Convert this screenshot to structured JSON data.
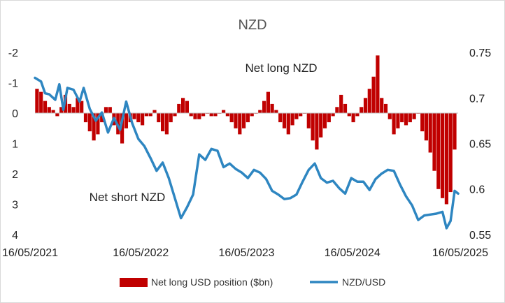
{
  "chart_data": {
    "type": "bar+line",
    "title": "NZD",
    "annotations": [
      "Net long NZD",
      "Net short NZD"
    ],
    "x_tick_labels": [
      "16/05/2021",
      "16/05/2022",
      "16/05/2023",
      "16/05/2024",
      "16/05/2025"
    ],
    "x_range": [
      "2021-05-16",
      "2025-05-16"
    ],
    "left_axis": {
      "ticks": [
        "-2",
        "-1",
        "0",
        "1",
        "2",
        "3",
        "4"
      ],
      "range": [
        -2,
        4
      ],
      "inverted": true
    },
    "right_axis": {
      "ticks": [
        "0.75",
        "0.7",
        "0.65",
        "0.6",
        "0.55"
      ],
      "range": [
        0.55,
        0.75
      ]
    },
    "grid": false,
    "legend_position": "bottom",
    "series": [
      {
        "name": "Net long USD position ($bn)",
        "type": "bar",
        "axis": "left",
        "color": "#c00000",
        "x": [
          "2021-05-23",
          "2021-06-06",
          "2021-06-20",
          "2021-07-04",
          "2021-07-18",
          "2021-08-01",
          "2021-08-15",
          "2021-08-29",
          "2021-09-12",
          "2021-09-26",
          "2021-10-10",
          "2021-10-24",
          "2021-11-07",
          "2021-11-21",
          "2021-12-05",
          "2021-12-19",
          "2022-01-02",
          "2022-01-16",
          "2022-01-30",
          "2022-02-13",
          "2022-02-27",
          "2022-03-13",
          "2022-03-27",
          "2022-04-10",
          "2022-04-24",
          "2022-05-08",
          "2022-05-22",
          "2022-06-05",
          "2022-06-19",
          "2022-07-03",
          "2022-07-17",
          "2022-07-31",
          "2022-08-14",
          "2022-08-28",
          "2022-09-11",
          "2022-09-25",
          "2022-10-09",
          "2022-10-23",
          "2022-11-06",
          "2022-11-20",
          "2022-12-04",
          "2022-12-18",
          "2023-01-01",
          "2023-01-15",
          "2023-01-29",
          "2023-02-12",
          "2023-02-26",
          "2023-03-12",
          "2023-03-26",
          "2023-04-09",
          "2023-04-23",
          "2023-05-07",
          "2023-05-21",
          "2023-06-04",
          "2023-06-18",
          "2023-07-02",
          "2023-07-16",
          "2023-07-30",
          "2023-08-13",
          "2023-08-27",
          "2023-09-10",
          "2023-09-24",
          "2023-10-08",
          "2023-10-22",
          "2023-11-05",
          "2023-11-19",
          "2023-12-03",
          "2023-12-17",
          "2023-12-31",
          "2024-01-14",
          "2024-01-28",
          "2024-02-11",
          "2024-02-25",
          "2024-03-10",
          "2024-03-24",
          "2024-04-07",
          "2024-04-21",
          "2024-05-05",
          "2024-05-19",
          "2024-06-02",
          "2024-06-16",
          "2024-06-30",
          "2024-07-14",
          "2024-07-28",
          "2024-08-11",
          "2024-08-25",
          "2024-09-08",
          "2024-09-22",
          "2024-10-06",
          "2024-10-20",
          "2024-11-03",
          "2024-11-17",
          "2024-12-01",
          "2024-12-15",
          "2024-12-29",
          "2025-01-12",
          "2025-01-26",
          "2025-02-09",
          "2025-02-23",
          "2025-03-09",
          "2025-03-23",
          "2025-04-06",
          "2025-04-20",
          "2025-05-04"
        ],
        "values": [
          -0.8,
          -0.7,
          -0.4,
          -0.2,
          -0.1,
          0.1,
          -0.2,
          -0.6,
          -0.3,
          -0.2,
          -0.5,
          -0.4,
          0.3,
          0.6,
          0.9,
          0.7,
          0.3,
          -0.2,
          -0.2,
          0.4,
          0.7,
          1.0,
          0.5,
          0.3,
          0.2,
          0.3,
          0.4,
          0.1,
          0.1,
          -0.1,
          0.3,
          0.6,
          0.7,
          0.3,
          0.1,
          -0.3,
          -0.5,
          -0.4,
          0.1,
          0.2,
          0.2,
          0.1,
          0.0,
          0.1,
          0.1,
          0.0,
          -0.1,
          0.1,
          0.3,
          0.5,
          0.7,
          0.5,
          0.3,
          0.1,
          0.0,
          -0.1,
          -0.4,
          -0.7,
          -0.3,
          -0.1,
          0.3,
          0.5,
          0.7,
          0.4,
          0.2,
          0.1,
          0.0,
          0.5,
          0.9,
          1.2,
          0.8,
          0.5,
          0.3,
          0.1,
          -0.2,
          -0.6,
          -0.3,
          0.1,
          0.3,
          0.1,
          -0.2,
          -0.5,
          -0.8,
          -1.2,
          -1.9,
          -0.5,
          -0.3,
          0.2,
          0.7,
          0.5,
          0.3,
          0.4,
          0.3,
          0.2,
          0.0,
          0.6,
          0.9,
          1.3,
          1.9,
          2.5,
          2.8,
          3.0,
          2.6,
          1.2
        ]
      },
      {
        "name": "NZD/USD",
        "type": "line",
        "axis": "right",
        "color": "#2e86c1",
        "x": [
          "2021-05-16",
          "2021-06-06",
          "2021-06-20",
          "2021-07-04",
          "2021-07-25",
          "2021-08-08",
          "2021-08-22",
          "2021-09-05",
          "2021-09-26",
          "2021-10-17",
          "2021-10-31",
          "2021-11-21",
          "2021-12-12",
          "2022-01-02",
          "2022-01-23",
          "2022-02-13",
          "2022-03-06",
          "2022-03-27",
          "2022-04-17",
          "2022-05-08",
          "2022-05-29",
          "2022-06-19",
          "2022-07-10",
          "2022-07-31",
          "2022-08-21",
          "2022-09-11",
          "2022-10-02",
          "2022-10-23",
          "2022-11-13",
          "2022-12-04",
          "2022-12-25",
          "2023-01-15",
          "2023-02-05",
          "2023-02-26",
          "2023-03-19",
          "2023-04-09",
          "2023-04-30",
          "2023-05-21",
          "2023-06-11",
          "2023-07-02",
          "2023-07-23",
          "2023-08-13",
          "2023-09-03",
          "2023-09-24",
          "2023-10-15",
          "2023-11-05",
          "2023-11-26",
          "2023-12-17",
          "2024-01-07",
          "2024-01-28",
          "2024-02-18",
          "2024-03-10",
          "2024-03-31",
          "2024-04-21",
          "2024-05-12",
          "2024-06-02",
          "2024-06-23",
          "2024-07-14",
          "2024-08-04",
          "2024-08-25",
          "2024-09-15",
          "2024-10-06",
          "2024-10-27",
          "2024-11-17",
          "2024-12-08",
          "2024-12-29",
          "2025-01-19",
          "2025-02-09",
          "2025-03-02",
          "2025-03-23",
          "2025-04-06",
          "2025-04-20",
          "2025-05-04",
          "2025-05-16"
        ],
        "values": [
          0.722,
          0.718,
          0.705,
          0.704,
          0.698,
          0.715,
          0.687,
          0.711,
          0.709,
          0.696,
          0.711,
          0.688,
          0.675,
          0.684,
          0.662,
          0.678,
          0.665,
          0.696,
          0.672,
          0.655,
          0.647,
          0.634,
          0.62,
          0.629,
          0.612,
          0.59,
          0.568,
          0.58,
          0.594,
          0.638,
          0.632,
          0.644,
          0.642,
          0.624,
          0.628,
          0.622,
          0.618,
          0.612,
          0.621,
          0.618,
          0.611,
          0.598,
          0.594,
          0.589,
          0.59,
          0.594,
          0.608,
          0.621,
          0.628,
          0.612,
          0.607,
          0.609,
          0.601,
          0.595,
          0.612,
          0.608,
          0.608,
          0.599,
          0.611,
          0.617,
          0.621,
          0.62,
          0.605,
          0.592,
          0.582,
          0.566,
          0.571,
          0.572,
          0.573,
          0.575,
          0.557,
          0.565,
          0.598,
          0.595
        ]
      }
    ]
  }
}
